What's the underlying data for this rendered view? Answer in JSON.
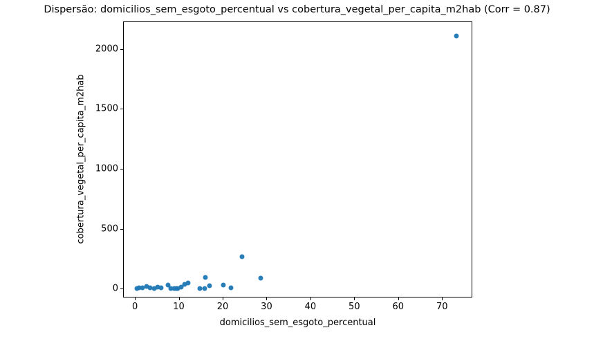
{
  "chart_data": {
    "type": "scatter",
    "title": "Dispersão: domicilios_sem_esgoto_percentual vs cobertura_vegetal_per_capita_m2hab (Corr = 0.87)",
    "xlabel": "domicilios_sem_esgoto_percentual",
    "ylabel": "cobertura_vegetal_per_capita_m2hab",
    "correlation": 0.87,
    "marker_color": "#1f77b4",
    "background_color": "#ffffff",
    "axis_color": "#000000",
    "grid": false,
    "legend": false,
    "xlim": [
      -2.7,
      76.9
    ],
    "ylim": [
      -73,
      2229
    ],
    "x_ticks": [
      0,
      10,
      20,
      30,
      40,
      50,
      60,
      70
    ],
    "y_ticks": [
      0,
      500,
      1000,
      1500,
      2000
    ],
    "points": [
      [
        0.4,
        2
      ],
      [
        0.9,
        5
      ],
      [
        1.7,
        10
      ],
      [
        2.6,
        22
      ],
      [
        3.5,
        7
      ],
      [
        4.4,
        3
      ],
      [
        5.2,
        16
      ],
      [
        5.9,
        7
      ],
      [
        7.6,
        30
      ],
      [
        8.2,
        3
      ],
      [
        8.9,
        1
      ],
      [
        9.4,
        2
      ],
      [
        9.7,
        3
      ],
      [
        10.5,
        16
      ],
      [
        11.3,
        35
      ],
      [
        12.1,
        48
      ],
      [
        14.8,
        4
      ],
      [
        15.9,
        4
      ],
      [
        16.1,
        95
      ],
      [
        17.0,
        25
      ],
      [
        20.1,
        33
      ],
      [
        21.9,
        9
      ],
      [
        24.4,
        270
      ],
      [
        28.7,
        88
      ],
      [
        73.2,
        2110
      ]
    ]
  }
}
